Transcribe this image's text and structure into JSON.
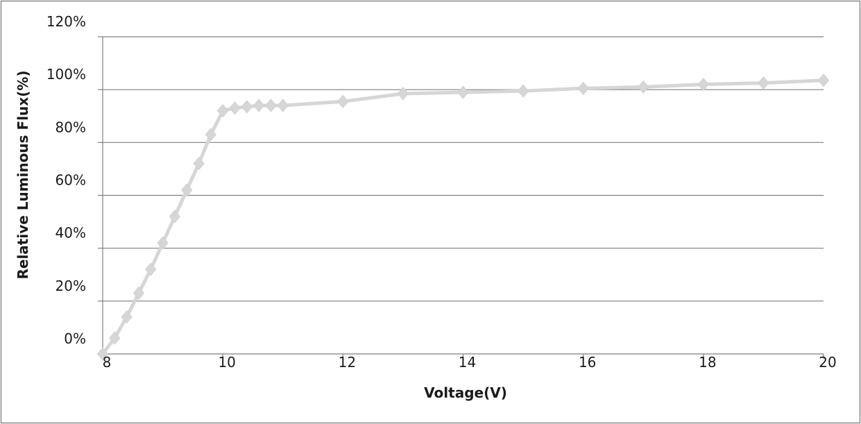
{
  "chart_data": {
    "type": "line",
    "title": "",
    "xlabel": "Voltage(V)",
    "ylabel": "Relative Luminous Flux(%)",
    "xlim": [
      8,
      20
    ],
    "ylim": [
      0,
      120
    ],
    "x_ticks": [
      8,
      10,
      12,
      14,
      16,
      18,
      20
    ],
    "x_tick_labels": [
      "8",
      "10",
      "12",
      "14",
      "16",
      "18",
      "20"
    ],
    "y_ticks": [
      0,
      20,
      40,
      60,
      80,
      100,
      120
    ],
    "y_tick_labels": [
      "0%",
      "20%",
      "40%",
      "60%",
      "80%",
      "100%",
      "120%"
    ],
    "grid": "horizontal",
    "legend": "none",
    "series": [
      {
        "color": "#d6d6d6",
        "marker": "diamond",
        "x": [
          8.0,
          8.2,
          8.4,
          8.6,
          8.8,
          9.0,
          9.2,
          9.4,
          9.6,
          9.8,
          10.0,
          10.2,
          10.4,
          10.6,
          10.8,
          11.0,
          12.0,
          13.0,
          14.0,
          15.0,
          16.0,
          17.0,
          18.0,
          19.0,
          20.0
        ],
        "y": [
          0,
          6,
          14,
          23,
          32,
          42,
          52,
          62,
          72,
          83,
          92,
          93,
          93.5,
          94,
          94,
          94,
          95.5,
          98.5,
          99,
          99.5,
          100.5,
          101,
          102,
          102.5,
          103.5
        ]
      }
    ]
  }
}
